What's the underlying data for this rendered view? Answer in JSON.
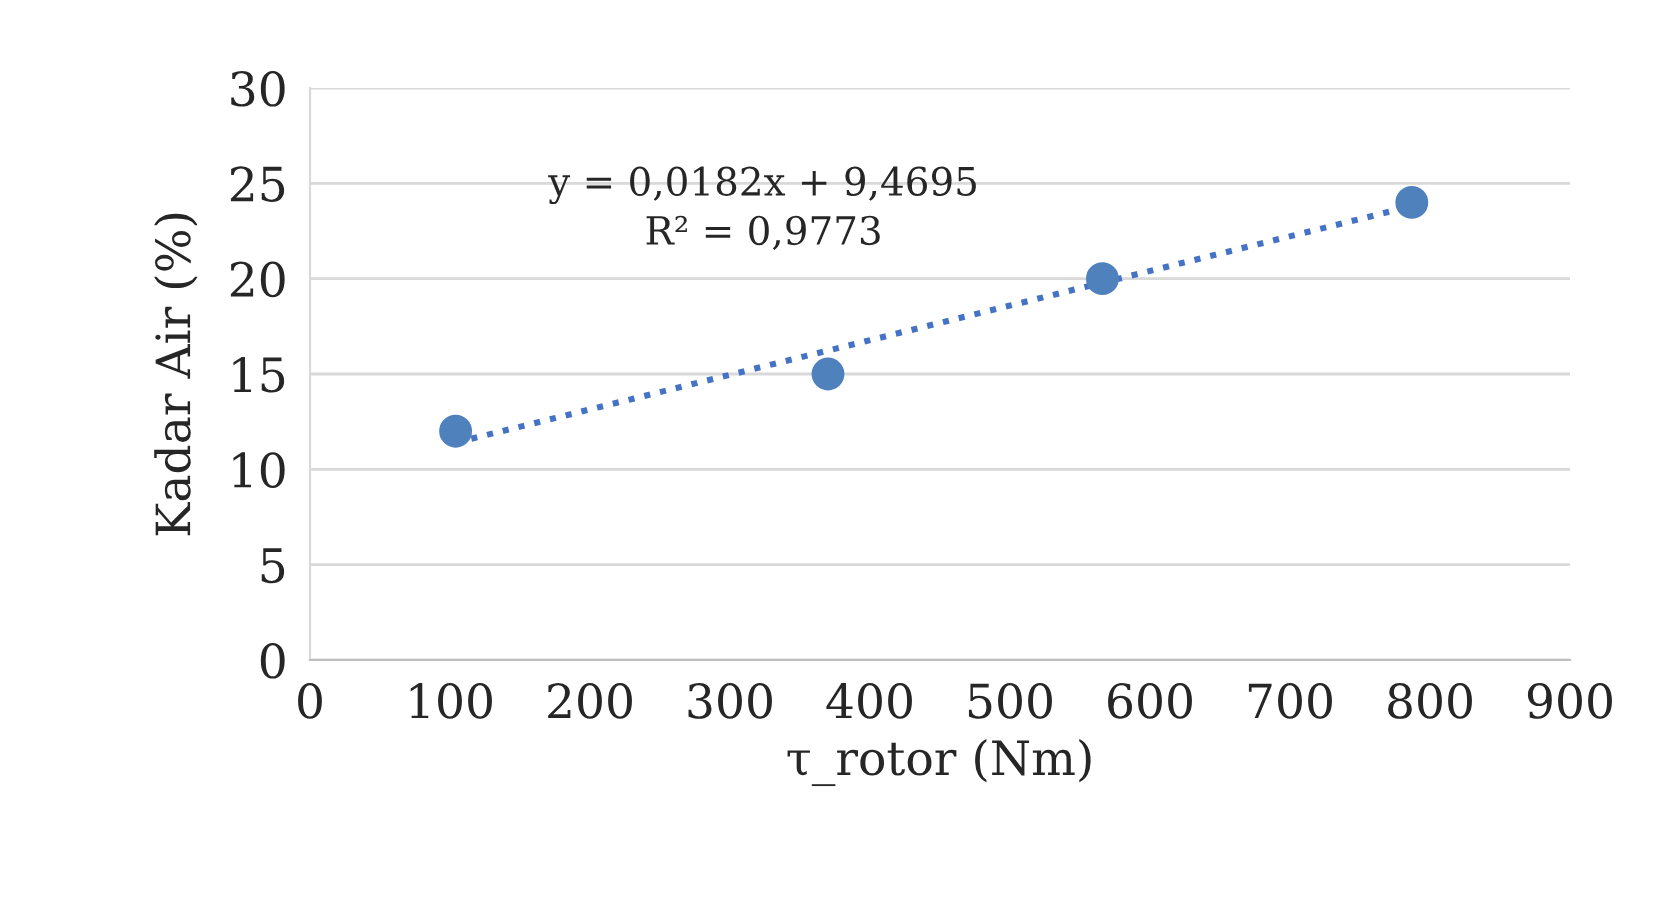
{
  "chart_data": {
    "type": "scatter",
    "xlabel": "τ_rotor (Nm)",
    "ylabel": "Kadar Air (%)",
    "annotations": [
      "y = 0,0182x + 9,4695",
      "R² = 0,9773"
    ],
    "x": [
      104,
      370,
      566,
      787
    ],
    "series": [
      {
        "color": "#4f81bd",
        "values": [
          12,
          15,
          20,
          24
        ],
        "marker": "circle"
      },
      {
        "type": "line",
        "color": "#4472c4",
        "x": [
          104,
          787
        ],
        "values": [
          11.4,
          23.8
        ],
        "line_style": "dotted",
        "marker": "none"
      }
    ],
    "xlim": [
      0,
      900
    ],
    "xticks": [
      0,
      100,
      200,
      300,
      400,
      500,
      600,
      700,
      800,
      900
    ],
    "ylim": [
      0,
      30
    ],
    "yticks": [
      0,
      5,
      10,
      15,
      20,
      25,
      30
    ],
    "grid": "y",
    "legend": false
  }
}
